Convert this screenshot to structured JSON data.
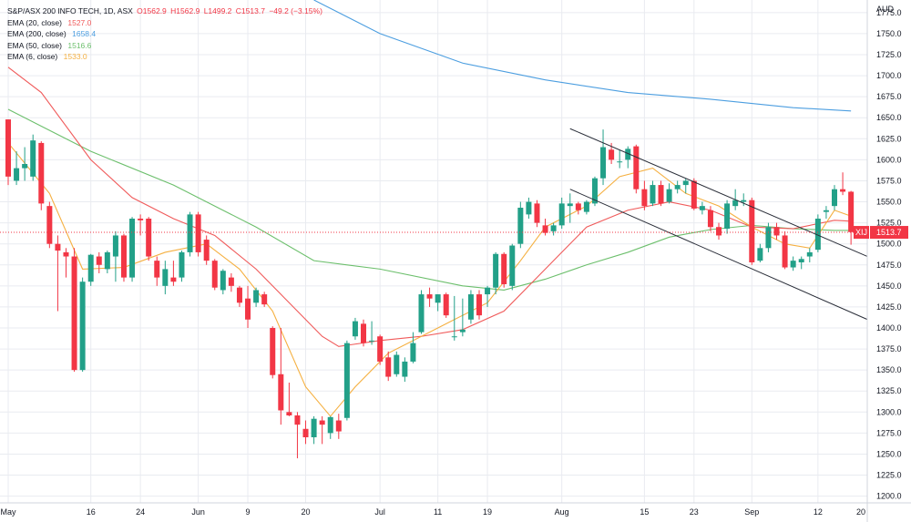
{
  "header": {
    "title": "S&P/ASX 200 INFO TECH, 1D, ASX",
    "open": "O1562.9",
    "high": "H1562.9",
    "low": "L1499.2",
    "close": "C1513.7",
    "change": "−49.2 (−3.15%)"
  },
  "indicators": [
    {
      "label": "EMA (20, close)",
      "value": "1527.0",
      "color": "#f05a5a"
    },
    {
      "label": "EMA (200, close)",
      "value": "1658.4",
      "color": "#4c9ee0"
    },
    {
      "label": "EMA (50, close)",
      "value": "1516.6",
      "color": "#6cbf6c"
    },
    {
      "label": "EMA (6, close)",
      "value": "1533.0",
      "color": "#f5b041"
    }
  ],
  "price_axis": {
    "currency": "AUD",
    "ticks": [
      "1775.0",
      "1750.0",
      "1725.0",
      "1700.0",
      "1675.0",
      "1650.0",
      "1625.0",
      "1600.0",
      "1575.0",
      "1550.0",
      "1525.0",
      "1500.0",
      "1475.0",
      "1450.0",
      "1425.0",
      "1400.0",
      "1375.0",
      "1350.0",
      "1325.0",
      "1300.0",
      "1275.0",
      "1250.0",
      "1225.0",
      "1200.0"
    ]
  },
  "current_price": {
    "symbol": "XIJ",
    "value": "1513.7",
    "color": "#f23645"
  },
  "time_axis": {
    "labels": [
      "May",
      "16",
      "24",
      "Jun",
      "9",
      "20",
      "Jul",
      "11",
      "19",
      "Aug",
      "15",
      "23",
      "Sep",
      "12",
      "20"
    ]
  },
  "colors": {
    "up": "#22a088",
    "down": "#f23645",
    "channel": "#2a2e39",
    "grid": "#e9ebf0"
  },
  "chart_data": {
    "type": "candlestick",
    "title": "S&P/ASX 200 INFO TECH",
    "ylim": [
      1192,
      1790
    ],
    "x_range": [
      0,
      102
    ],
    "x_ticks": [
      {
        "label": "May",
        "index": 0
      },
      {
        "label": "16",
        "index": 10
      },
      {
        "label": "24",
        "index": 16
      },
      {
        "label": "Jun",
        "index": 23
      },
      {
        "label": "9",
        "index": 29
      },
      {
        "label": "20",
        "index": 36
      },
      {
        "label": "Jul",
        "index": 45
      },
      {
        "label": "11",
        "index": 52
      },
      {
        "label": "19",
        "index": 58
      },
      {
        "label": "Aug",
        "index": 67
      },
      {
        "label": "15",
        "index": 77
      },
      {
        "label": "23",
        "index": 83
      },
      {
        "label": "Sep",
        "index": 90
      },
      {
        "label": "12",
        "index": 98
      },
      {
        "label": "20",
        "index": 104
      }
    ],
    "candles": [
      {
        "o": 1648,
        "h": 1648,
        "l": 1570,
        "c": 1580
      },
      {
        "o": 1575,
        "h": 1610,
        "l": 1570,
        "c": 1590
      },
      {
        "o": 1590,
        "h": 1615,
        "l": 1575,
        "c": 1595
      },
      {
        "o": 1580,
        "h": 1630,
        "l": 1575,
        "c": 1623
      },
      {
        "o": 1620,
        "h": 1622,
        "l": 1540,
        "c": 1548
      },
      {
        "o": 1545,
        "h": 1550,
        "l": 1495,
        "c": 1500
      },
      {
        "o": 1500,
        "h": 1510,
        "l": 1420,
        "c": 1492
      },
      {
        "o": 1490,
        "h": 1495,
        "l": 1460,
        "c": 1485
      },
      {
        "o": 1485,
        "h": 1495,
        "l": 1348,
        "c": 1350
      },
      {
        "o": 1350,
        "h": 1460,
        "l": 1348,
        "c": 1455
      },
      {
        "o": 1455,
        "h": 1488,
        "l": 1450,
        "c": 1487
      },
      {
        "o": 1485,
        "h": 1490,
        "l": 1465,
        "c": 1475
      },
      {
        "o": 1470,
        "h": 1492,
        "l": 1465,
        "c": 1490
      },
      {
        "o": 1485,
        "h": 1515,
        "l": 1455,
        "c": 1510
      },
      {
        "o": 1510,
        "h": 1512,
        "l": 1455,
        "c": 1460
      },
      {
        "o": 1460,
        "h": 1532,
        "l": 1455,
        "c": 1530
      },
      {
        "o": 1530,
        "h": 1535,
        "l": 1510,
        "c": 1528
      },
      {
        "o": 1530,
        "h": 1532,
        "l": 1480,
        "c": 1485
      },
      {
        "o": 1480,
        "h": 1485,
        "l": 1450,
        "c": 1460
      },
      {
        "o": 1450,
        "h": 1480,
        "l": 1440,
        "c": 1470
      },
      {
        "o": 1460,
        "h": 1480,
        "l": 1450,
        "c": 1455
      },
      {
        "o": 1460,
        "h": 1492,
        "l": 1455,
        "c": 1490
      },
      {
        "o": 1490,
        "h": 1538,
        "l": 1485,
        "c": 1535
      },
      {
        "o": 1535,
        "h": 1538,
        "l": 1485,
        "c": 1490
      },
      {
        "o": 1505,
        "h": 1510,
        "l": 1475,
        "c": 1480
      },
      {
        "o": 1480,
        "h": 1482,
        "l": 1445,
        "c": 1448
      },
      {
        "o": 1445,
        "h": 1470,
        "l": 1440,
        "c": 1468
      },
      {
        "o": 1460,
        "h": 1465,
        "l": 1443,
        "c": 1450
      },
      {
        "o": 1448,
        "h": 1450,
        "l": 1425,
        "c": 1430
      },
      {
        "o": 1435,
        "h": 1450,
        "l": 1400,
        "c": 1410
      },
      {
        "o": 1430,
        "h": 1448,
        "l": 1425,
        "c": 1445
      },
      {
        "o": 1440,
        "h": 1443,
        "l": 1425,
        "c": 1428
      },
      {
        "o": 1400,
        "h": 1402,
        "l": 1340,
        "c": 1344
      },
      {
        "o": 1345,
        "h": 1400,
        "l": 1285,
        "c": 1302
      },
      {
        "o": 1300,
        "h": 1335,
        "l": 1295,
        "c": 1296
      },
      {
        "o": 1296,
        "h": 1300,
        "l": 1245,
        "c": 1285
      },
      {
        "o": 1280,
        "h": 1290,
        "l": 1262,
        "c": 1270
      },
      {
        "o": 1270,
        "h": 1295,
        "l": 1262,
        "c": 1292
      },
      {
        "o": 1290,
        "h": 1295,
        "l": 1262,
        "c": 1285
      },
      {
        "o": 1275,
        "h": 1295,
        "l": 1268,
        "c": 1294
      },
      {
        "o": 1290,
        "h": 1298,
        "l": 1268,
        "c": 1277
      },
      {
        "o": 1293,
        "h": 1385,
        "l": 1290,
        "c": 1382
      },
      {
        "o": 1390,
        "h": 1412,
        "l": 1386,
        "c": 1408
      },
      {
        "o": 1405,
        "h": 1410,
        "l": 1378,
        "c": 1382
      },
      {
        "o": 1384,
        "h": 1408,
        "l": 1380,
        "c": 1385
      },
      {
        "o": 1390,
        "h": 1392,
        "l": 1356,
        "c": 1360
      },
      {
        "o": 1365,
        "h": 1372,
        "l": 1337,
        "c": 1342
      },
      {
        "o": 1345,
        "h": 1372,
        "l": 1342,
        "c": 1368
      },
      {
        "o": 1342,
        "h": 1365,
        "l": 1336,
        "c": 1360
      },
      {
        "o": 1360,
        "h": 1395,
        "l": 1358,
        "c": 1382
      },
      {
        "o": 1395,
        "h": 1445,
        "l": 1393,
        "c": 1440
      },
      {
        "o": 1440,
        "h": 1448,
        "l": 1425,
        "c": 1435
      },
      {
        "o": 1430,
        "h": 1440,
        "l": 1420,
        "c": 1440
      },
      {
        "o": 1440,
        "h": 1442,
        "l": 1412,
        "c": 1415
      },
      {
        "o": 1390,
        "h": 1438,
        "l": 1385,
        "c": 1390
      },
      {
        "o": 1395,
        "h": 1435,
        "l": 1390,
        "c": 1398
      },
      {
        "o": 1410,
        "h": 1445,
        "l": 1405,
        "c": 1440
      },
      {
        "o": 1440,
        "h": 1445,
        "l": 1410,
        "c": 1415
      },
      {
        "o": 1440,
        "h": 1450,
        "l": 1425,
        "c": 1448
      },
      {
        "o": 1448,
        "h": 1490,
        "l": 1440,
        "c": 1488
      },
      {
        "o": 1488,
        "h": 1490,
        "l": 1448,
        "c": 1452
      },
      {
        "o": 1450,
        "h": 1500,
        "l": 1445,
        "c": 1498
      },
      {
        "o": 1500,
        "h": 1550,
        "l": 1495,
        "c": 1543
      },
      {
        "o": 1535,
        "h": 1555,
        "l": 1530,
        "c": 1550
      },
      {
        "o": 1548,
        "h": 1552,
        "l": 1520,
        "c": 1525
      },
      {
        "o": 1522,
        "h": 1530,
        "l": 1510,
        "c": 1513
      },
      {
        "o": 1515,
        "h": 1525,
        "l": 1510,
        "c": 1522
      },
      {
        "o": 1522,
        "h": 1555,
        "l": 1518,
        "c": 1548
      },
      {
        "o": 1545,
        "h": 1560,
        "l": 1525,
        "c": 1548
      },
      {
        "o": 1548,
        "h": 1550,
        "l": 1535,
        "c": 1540
      },
      {
        "o": 1538,
        "h": 1552,
        "l": 1535,
        "c": 1550
      },
      {
        "o": 1548,
        "h": 1580,
        "l": 1545,
        "c": 1578
      },
      {
        "o": 1578,
        "h": 1636,
        "l": 1570,
        "c": 1615
      },
      {
        "o": 1612,
        "h": 1620,
        "l": 1595,
        "c": 1600
      },
      {
        "o": 1598,
        "h": 1612,
        "l": 1590,
        "c": 1598
      },
      {
        "o": 1600,
        "h": 1616,
        "l": 1590,
        "c": 1613
      },
      {
        "o": 1616,
        "h": 1618,
        "l": 1560,
        "c": 1565
      },
      {
        "o": 1565,
        "h": 1575,
        "l": 1540,
        "c": 1545
      },
      {
        "o": 1548,
        "h": 1575,
        "l": 1545,
        "c": 1570
      },
      {
        "o": 1570,
        "h": 1575,
        "l": 1545,
        "c": 1548
      },
      {
        "o": 1550,
        "h": 1572,
        "l": 1548,
        "c": 1565
      },
      {
        "o": 1565,
        "h": 1575,
        "l": 1560,
        "c": 1570
      },
      {
        "o": 1570,
        "h": 1578,
        "l": 1560,
        "c": 1575
      },
      {
        "o": 1575,
        "h": 1578,
        "l": 1540,
        "c": 1542
      },
      {
        "o": 1540,
        "h": 1550,
        "l": 1535,
        "c": 1545
      },
      {
        "o": 1540,
        "h": 1545,
        "l": 1515,
        "c": 1520
      },
      {
        "o": 1520,
        "h": 1525,
        "l": 1505,
        "c": 1510
      },
      {
        "o": 1518,
        "h": 1552,
        "l": 1512,
        "c": 1548
      },
      {
        "o": 1545,
        "h": 1565,
        "l": 1540,
        "c": 1552
      },
      {
        "o": 1550,
        "h": 1560,
        "l": 1545,
        "c": 1552
      },
      {
        "o": 1552,
        "h": 1555,
        "l": 1475,
        "c": 1478
      },
      {
        "o": 1480,
        "h": 1500,
        "l": 1478,
        "c": 1495
      },
      {
        "o": 1495,
        "h": 1525,
        "l": 1490,
        "c": 1520
      },
      {
        "o": 1520,
        "h": 1525,
        "l": 1505,
        "c": 1510
      },
      {
        "o": 1510,
        "h": 1515,
        "l": 1470,
        "c": 1472
      },
      {
        "o": 1472,
        "h": 1485,
        "l": 1468,
        "c": 1480
      },
      {
        "o": 1478,
        "h": 1485,
        "l": 1470,
        "c": 1482
      },
      {
        "o": 1485,
        "h": 1495,
        "l": 1478,
        "c": 1490
      },
      {
        "o": 1493,
        "h": 1535,
        "l": 1490,
        "c": 1530
      },
      {
        "o": 1538,
        "h": 1545,
        "l": 1530,
        "c": 1540
      },
      {
        "o": 1545,
        "h": 1570,
        "l": 1540,
        "c": 1565
      },
      {
        "o": 1565,
        "h": 1585,
        "l": 1558,
        "c": 1562
      },
      {
        "o": 1562,
        "h": 1563,
        "l": 1499,
        "c": 1514
      }
    ],
    "ema_lines": [
      {
        "name": "EMA (200, close)",
        "color": "#4c9ee0",
        "points": [
          [
            37,
            1790
          ],
          [
            45,
            1750
          ],
          [
            55,
            1715
          ],
          [
            65,
            1695
          ],
          [
            75,
            1680
          ],
          [
            85,
            1672
          ],
          [
            95,
            1662
          ],
          [
            102,
            1658
          ]
        ]
      },
      {
        "name": "EMA (50, close)",
        "color": "#6cbf6c",
        "points": [
          [
            0,
            1660
          ],
          [
            4,
            1640
          ],
          [
            10,
            1610
          ],
          [
            20,
            1570
          ],
          [
            30,
            1520
          ],
          [
            37,
            1480
          ],
          [
            45,
            1470
          ],
          [
            55,
            1450
          ],
          [
            60,
            1445
          ],
          [
            65,
            1458
          ],
          [
            70,
            1475
          ],
          [
            75,
            1490
          ],
          [
            80,
            1508
          ],
          [
            85,
            1517
          ],
          [
            90,
            1522
          ],
          [
            95,
            1518
          ],
          [
            100,
            1516
          ],
          [
            102,
            1516
          ]
        ]
      },
      {
        "name": "EMA (20, close)",
        "color": "#f05a5a",
        "points": [
          [
            0,
            1710
          ],
          [
            4,
            1680
          ],
          [
            10,
            1600
          ],
          [
            15,
            1555
          ],
          [
            20,
            1530
          ],
          [
            25,
            1510
          ],
          [
            30,
            1470
          ],
          [
            35,
            1420
          ],
          [
            38,
            1390
          ],
          [
            40,
            1378
          ],
          [
            45,
            1385
          ],
          [
            50,
            1390
          ],
          [
            55,
            1398
          ],
          [
            60,
            1420
          ],
          [
            65,
            1470
          ],
          [
            70,
            1520
          ],
          [
            75,
            1540
          ],
          [
            80,
            1550
          ],
          [
            85,
            1540
          ],
          [
            90,
            1520
          ],
          [
            95,
            1518
          ],
          [
            100,
            1528
          ],
          [
            102,
            1527
          ]
        ]
      },
      {
        "name": "EMA (6, close)",
        "color": "#f5b041",
        "points": [
          [
            0,
            1620
          ],
          [
            5,
            1560
          ],
          [
            9,
            1470
          ],
          [
            14,
            1472
          ],
          [
            19,
            1490
          ],
          [
            24,
            1500
          ],
          [
            28,
            1470
          ],
          [
            32,
            1420
          ],
          [
            36,
            1330
          ],
          [
            39,
            1295
          ],
          [
            42,
            1330
          ],
          [
            46,
            1370
          ],
          [
            50,
            1390
          ],
          [
            54,
            1410
          ],
          [
            58,
            1430
          ],
          [
            62,
            1480
          ],
          [
            65,
            1520
          ],
          [
            70,
            1545
          ],
          [
            74,
            1580
          ],
          [
            78,
            1590
          ],
          [
            82,
            1560
          ],
          [
            86,
            1545
          ],
          [
            90,
            1520
          ],
          [
            94,
            1500
          ],
          [
            97,
            1495
          ],
          [
            100,
            1540
          ],
          [
            102,
            1533
          ]
        ]
      }
    ],
    "channel_lines": [
      {
        "p1": [
          68,
          1637
        ],
        "p2": [
          104,
          1485
        ]
      },
      {
        "p1": [
          68,
          1565
        ],
        "p2": [
          104,
          1410
        ]
      }
    ]
  }
}
